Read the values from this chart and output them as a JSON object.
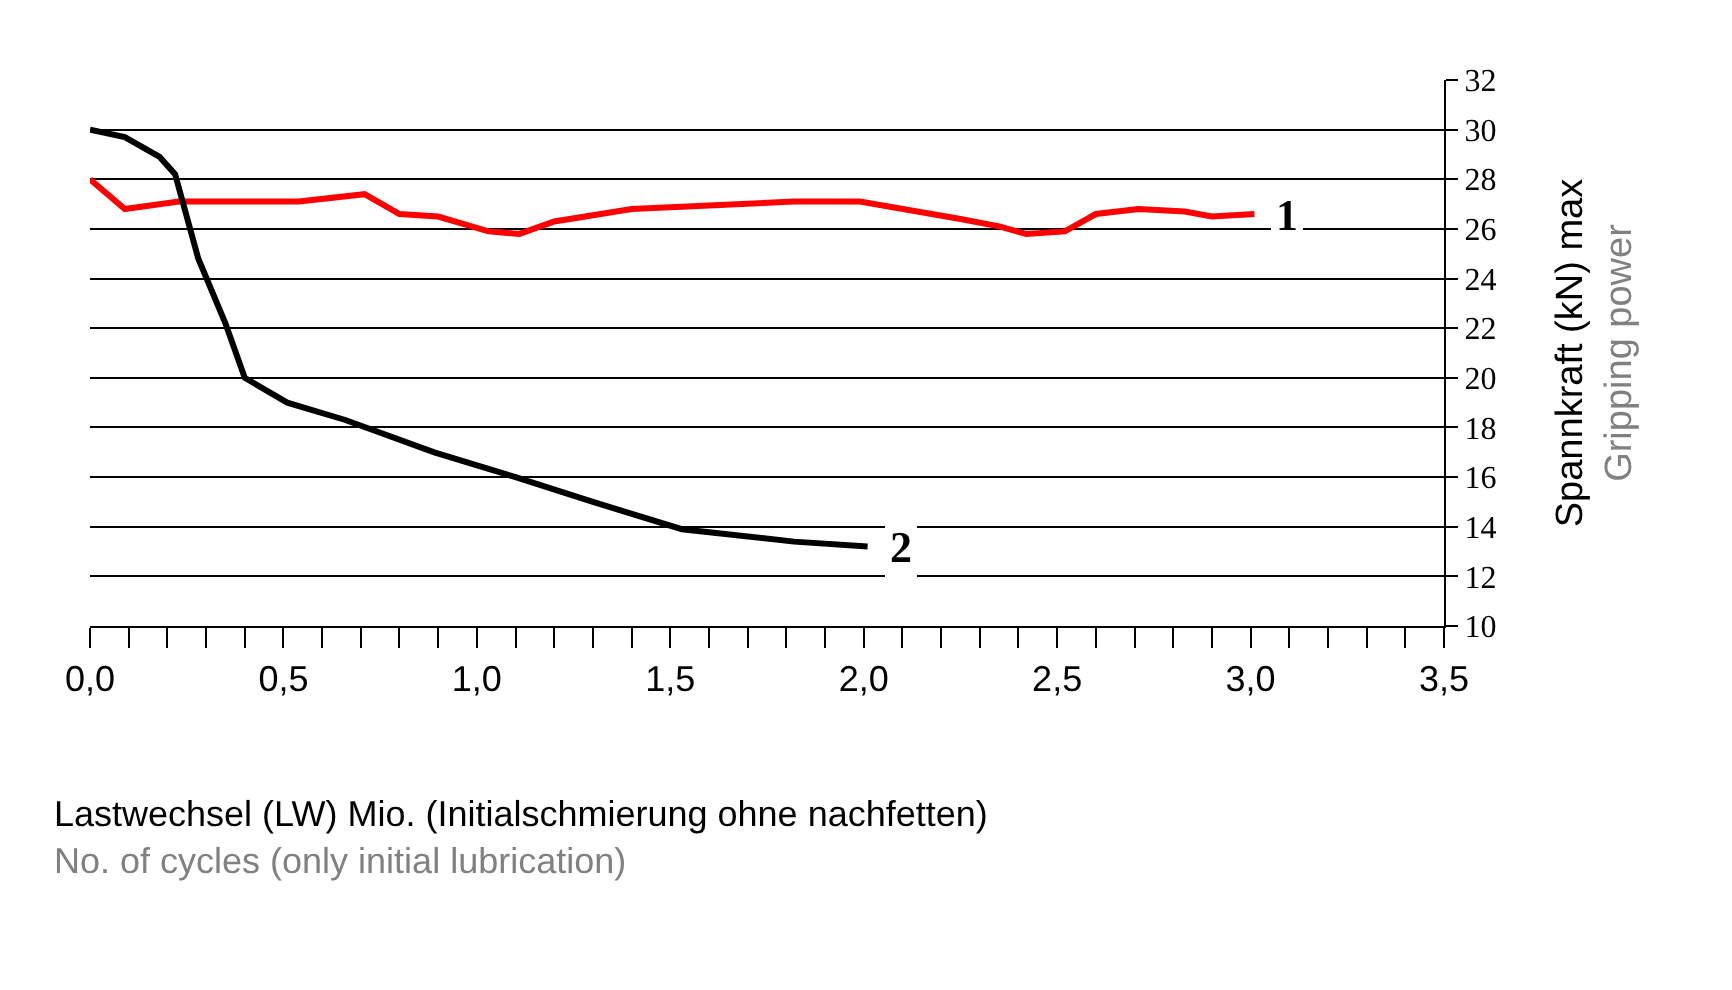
{
  "chart_data": {
    "type": "line",
    "xlabel": "Lastwechsel (LW) Mio. (Initialschmierung ohne nachfetten)\nNo. of cycles (only initial lubrication)",
    "ylabel": "Spannkraft (kN) max\nGripping power",
    "series": [
      {
        "name": "1",
        "color": "#ff0000",
        "x": [
          0.0,
          0.09,
          0.23,
          0.54,
          0.71,
          0.8,
          0.9,
          1.03,
          1.11,
          1.2,
          1.4,
          1.82,
          1.99,
          2.25,
          2.35,
          2.42,
          2.52,
          2.6,
          2.71,
          2.83,
          2.9,
          3.01
        ],
        "values": [
          28.0,
          26.8,
          27.1,
          27.1,
          27.4,
          26.6,
          26.5,
          25.9,
          25.8,
          26.3,
          26.8,
          27.1,
          27.1,
          26.4,
          26.1,
          25.8,
          25.9,
          26.6,
          26.8,
          26.7,
          26.5,
          26.6
        ]
      },
      {
        "name": "2",
        "color": "#000000",
        "x": [
          0.0,
          0.09,
          0.18,
          0.22,
          0.28,
          0.35,
          0.4,
          0.51,
          0.66,
          0.89,
          1.1,
          1.3,
          1.53,
          1.82,
          2.01
        ],
        "values": [
          30.0,
          29.7,
          28.9,
          28.2,
          24.8,
          22.2,
          20.0,
          19.0,
          18.3,
          17.0,
          16.0,
          15.0,
          13.9,
          13.4,
          13.2
        ]
      }
    ],
    "xlim": [
      0,
      3.5
    ],
    "xticks": [
      {
        "value": 0,
        "label": "0,0"
      },
      {
        "value": 0.1,
        "label": null
      },
      {
        "value": 0.2,
        "label": null
      },
      {
        "value": 0.3,
        "label": null
      },
      {
        "value": 0.4,
        "label": null
      },
      {
        "value": 0.5,
        "label": "0,5"
      },
      {
        "value": 0.6,
        "label": null
      },
      {
        "value": 0.7,
        "label": null
      },
      {
        "value": 0.8,
        "label": null
      },
      {
        "value": 0.9,
        "label": null
      },
      {
        "value": 1.0,
        "label": "1,0"
      },
      {
        "value": 1.1,
        "label": null
      },
      {
        "value": 1.2,
        "label": null
      },
      {
        "value": 1.3,
        "label": null
      },
      {
        "value": 1.4,
        "label": null
      },
      {
        "value": 1.5,
        "label": "1,5"
      },
      {
        "value": 1.6,
        "label": null
      },
      {
        "value": 1.7,
        "label": null
      },
      {
        "value": 1.8,
        "label": null
      },
      {
        "value": 1.9,
        "label": null
      },
      {
        "value": 2.0,
        "label": "2,0"
      },
      {
        "value": 2.1,
        "label": null
      },
      {
        "value": 2.2,
        "label": null
      },
      {
        "value": 2.3,
        "label": null
      },
      {
        "value": 2.4,
        "label": null
      },
      {
        "value": 2.5,
        "label": "2,5"
      },
      {
        "value": 2.6,
        "label": null
      },
      {
        "value": 2.7,
        "label": null
      },
      {
        "value": 2.8,
        "label": null
      },
      {
        "value": 2.9,
        "label": null
      },
      {
        "value": 3.0,
        "label": "3,0"
      },
      {
        "value": 3.1,
        "label": null
      },
      {
        "value": 3.2,
        "label": null
      },
      {
        "value": 3.3,
        "label": null
      },
      {
        "value": 3.4,
        "label": null
      },
      {
        "value": 3.5,
        "label": "3,5"
      }
    ],
    "ylim": [
      10,
      32
    ],
    "yticks": [
      10,
      12,
      14,
      16,
      18,
      20,
      22,
      24,
      26,
      28,
      30,
      32
    ],
    "grid": "y",
    "legend": false,
    "marker": "none",
    "line_style": "solid"
  }
}
